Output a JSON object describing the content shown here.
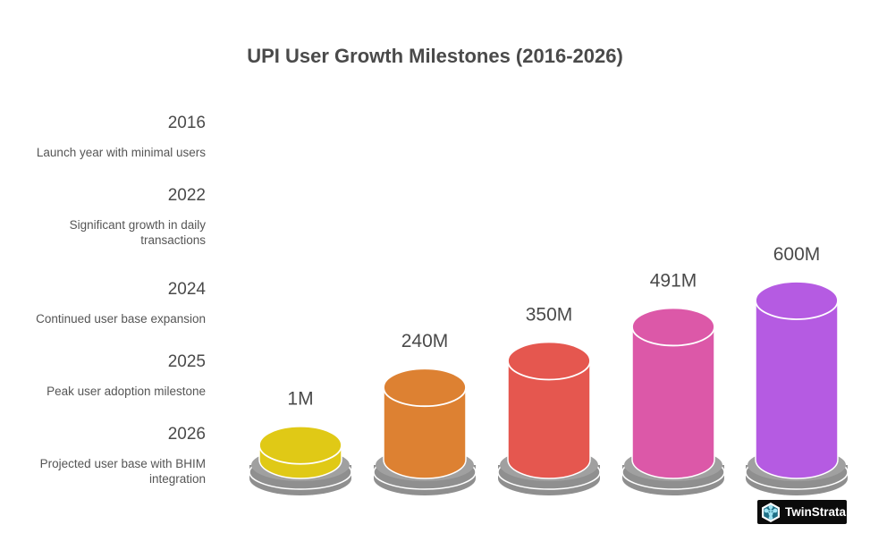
{
  "title": "UPI User Growth Milestones (2016-2026)",
  "milestones": [
    {
      "year": "2016",
      "description": "Launch year with minimal users"
    },
    {
      "year": "2022",
      "description": "Significant growth in daily transactions"
    },
    {
      "year": "2024",
      "description": "Continued user base expansion"
    },
    {
      "year": "2025",
      "description": "Peak user adoption milestone"
    },
    {
      "year": "2026",
      "description": "Projected user base with BHIM integration"
    }
  ],
  "chart_data": {
    "type": "bar",
    "style": "3d-cylinder",
    "title": "UPI User Growth Milestones (2016-2026)",
    "categories": [
      "2016",
      "2022",
      "2024",
      "2025",
      "2026"
    ],
    "values": [
      1,
      240,
      350,
      491,
      600
    ],
    "unit": "M users",
    "data_labels": [
      "1M",
      "240M",
      "350M",
      "491M",
      "600M"
    ],
    "colors": [
      "#e0c916",
      "#dd8132",
      "#e5574f",
      "#dc58a8",
      "#b55be2"
    ],
    "base_color": "#8f8f8f",
    "xlabel": "",
    "ylabel": "",
    "grid": false
  },
  "brand": {
    "name": "TwinStrata",
    "icon": "network-hexagon-icon"
  }
}
